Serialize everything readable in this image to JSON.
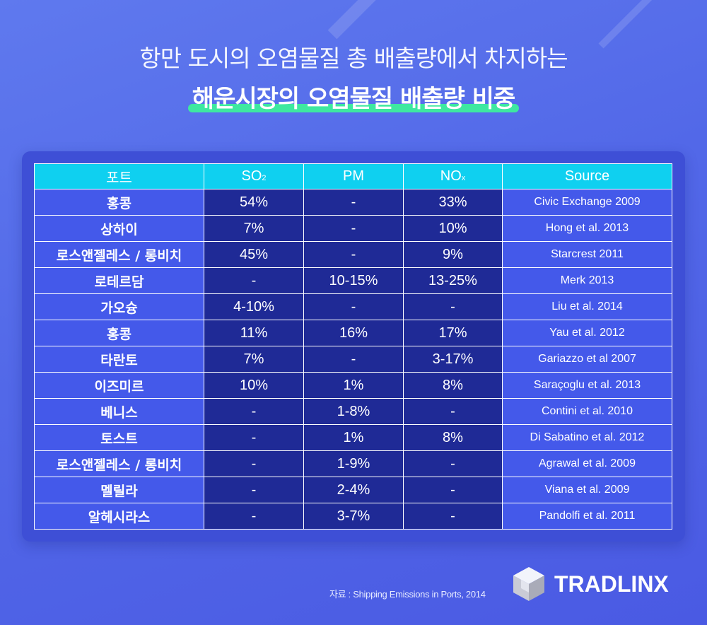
{
  "title_line1": "항만 도시의 오염물질 총 배출량에서 차지하는",
  "title_line2": "해운시장의 오염물질 배출량 비중",
  "table": {
    "headers": {
      "port": "포트",
      "so2_main": "SO",
      "so2_sub": "2",
      "pm": "PM",
      "nox_main": "NO",
      "nox_sub": "x",
      "source": "Source"
    },
    "rows": [
      {
        "port": "홍콩",
        "so2": "54%",
        "pm": "-",
        "nox": "33%",
        "source": "Civic Exchange 2009"
      },
      {
        "port": "상하이",
        "so2": "7%",
        "pm": "-",
        "nox": "10%",
        "source": "Hong et al. 2013"
      },
      {
        "port": "로스앤젤레스 / 롱비치",
        "so2": "45%",
        "pm": "-",
        "nox": "9%",
        "source": "Starcrest 2011"
      },
      {
        "port": "로테르담",
        "so2": "-",
        "pm": "10-15%",
        "nox": "13-25%",
        "source": "Merk 2013"
      },
      {
        "port": "가오슝",
        "so2": "4-10%",
        "pm": "-",
        "nox": "-",
        "source": "Liu et al. 2014"
      },
      {
        "port": "홍콩",
        "so2": "11%",
        "pm": "16%",
        "nox": "17%",
        "source": "Yau et al. 2012"
      },
      {
        "port": "타란토",
        "so2": "7%",
        "pm": "-",
        "nox": "3-17%",
        "source": "Gariazzo et al 2007"
      },
      {
        "port": "이즈미르",
        "so2": "10%",
        "pm": "1%",
        "nox": "8%",
        "source": "Saraçoglu et al. 2013"
      },
      {
        "port": "베니스",
        "so2": "-",
        "pm": "1-8%",
        "nox": "-",
        "source": "Contini et al. 2010"
      },
      {
        "port": "토스트",
        "so2": "-",
        "pm": "1%",
        "nox": "8%",
        "source": "Di Sabatino et al. 2012"
      },
      {
        "port": "로스앤젤레스 / 롱비치",
        "so2": "-",
        "pm": "1-9%",
        "nox": "-",
        "source": "Agrawal et al. 2009"
      },
      {
        "port": "멜릴라",
        "so2": "-",
        "pm": "2-4%",
        "nox": "-",
        "source": "Viana et al. 2009"
      },
      {
        "port": "알헤시라스",
        "so2": "-",
        "pm": "3-7%",
        "nox": "-",
        "source": "Pandolfi et al. 2011"
      }
    ]
  },
  "footer_source": "자료 : Shipping Emissions in Ports, 2014",
  "logo_text": "TRADLINX",
  "colors": {
    "background": "#5268e8",
    "header_cyan": "#0fd0f0",
    "value_cell": "#1f2a96",
    "label_cell": "#4459ea",
    "highlight_green": "#3ee8a0"
  }
}
